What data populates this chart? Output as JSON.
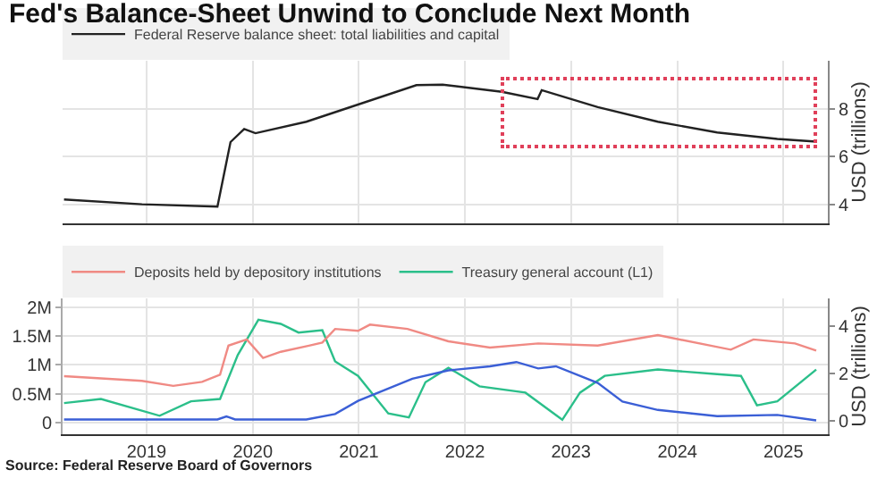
{
  "chart_data": [
    {
      "type": "line",
      "title": "Fed's Balance-Sheet Unwind to Conclude Next Month",
      "y2label": "USD (trillions)",
      "xlim": [
        "2018-09-15",
        "2025-12-01"
      ],
      "xticks": [
        {
          "value": "2019-07-01",
          "label": null
        },
        {
          "value": "2020-07-01",
          "label": null
        },
        {
          "value": "2021-07-01",
          "label": null
        },
        {
          "value": "2022-07-01",
          "label": null
        },
        {
          "value": "2023-07-01",
          "label": null
        },
        {
          "value": "2024-07-01",
          "label": null
        },
        {
          "value": "2025-07-01",
          "label": null
        }
      ],
      "y2lim": [
        3.2,
        10
      ],
      "y2ticks": [
        4,
        6,
        8
      ],
      "tick_labels": "y",
      "grid": true,
      "legend": "top left",
      "marker": "none",
      "line_style": "solid",
      "series": [
        {
          "name": "Federal Reserve balance sheet: total liabilities and capital",
          "color": "#222222",
          "axis": "y2",
          "x": [
            "2018-09-20",
            "2019-06-15",
            "2020-03-01",
            "2020-04-15",
            "2020-06-01",
            "2020-07-10",
            "2021-01-01",
            "2022-01-15",
            "2022-04-15",
            "2022-11-05",
            "2023-03-08",
            "2023-03-22",
            "2023-10-01",
            "2024-04-25",
            "2024-11-15",
            "2025-06-10",
            "2025-10-22"
          ],
          "values": [
            4.2,
            4.0,
            3.9,
            6.6,
            7.15,
            6.97,
            7.45,
            8.98,
            9.0,
            8.7,
            8.4,
            8.77,
            8.06,
            7.45,
            7.0,
            6.73,
            6.62
          ]
        }
      ]
    },
    {
      "type": "line",
      "xlim": [
        "2018-09-15",
        "2025-12-01"
      ],
      "xticks": [
        {
          "value": "2019-07-01",
          "label": "2019"
        },
        {
          "value": "2020-07-01",
          "label": "2020"
        },
        {
          "value": "2021-07-01",
          "label": "2021"
        },
        {
          "value": "2022-07-01",
          "label": "2022"
        },
        {
          "value": "2023-07-01",
          "label": "2023"
        },
        {
          "value": "2024-07-01",
          "label": "2024"
        },
        {
          "value": "2025-07-01",
          "label": "2025"
        }
      ],
      "ylim": [
        -0.2,
        2.15
      ],
      "yticks": [
        {
          "value": 0,
          "label": "0"
        },
        {
          "value": 0.5,
          "label": "0.5M"
        },
        {
          "value": 1,
          "label": "1M"
        },
        {
          "value": 1.5,
          "label": "1.5M"
        },
        {
          "value": 2,
          "label": "2M"
        }
      ],
      "y2lim": [
        -0.55,
        5.15
      ],
      "y2ticks": [
        0,
        2,
        4
      ],
      "y2label": "USD (trillions)",
      "grid": true,
      "legend": "top left",
      "marker": "none",
      "line_style": "solid",
      "annotations": [
        "Source: Federal Reserve Board of Governors"
      ],
      "series": [
        {
          "name": "Deposits held by depository institutions",
          "color": "#f08a84",
          "axis": "y2",
          "x": [
            "2018-09-20",
            "2019-06-15",
            "2019-10-01",
            "2020-01-08",
            "2020-03-10",
            "2020-04-08",
            "2020-06-10",
            "2020-08-05",
            "2020-10-05",
            "2021-01-10",
            "2021-02-25",
            "2021-04-10",
            "2021-06-28",
            "2021-08-08",
            "2021-12-15",
            "2022-05-05",
            "2022-09-25",
            "2023-03-10",
            "2023-10-01",
            "2024-04-25",
            "2025-01-01",
            "2025-03-20",
            "2025-08-10",
            "2025-10-22"
          ],
          "values": [
            1.89,
            1.69,
            1.48,
            1.65,
            1.95,
            3.17,
            3.43,
            2.65,
            2.91,
            3.17,
            3.3,
            3.87,
            3.79,
            4.05,
            3.87,
            3.35,
            3.09,
            3.26,
            3.17,
            3.61,
            3.0,
            3.43,
            3.26,
            2.96
          ]
        },
        {
          "color": "#3b5fd6",
          "axis": "y2",
          "x": [
            "2018-09-20",
            "2020-03-01",
            "2020-04-01",
            "2020-05-01",
            "2021-01-01",
            "2021-04-10",
            "2021-06-28",
            "2022-01-01",
            "2022-05-05",
            "2022-09-25",
            "2022-12-25",
            "2023-03-10",
            "2023-05-10",
            "2023-10-01",
            "2023-12-25",
            "2024-04-25",
            "2024-11-15",
            "2025-06-10",
            "2025-10-22"
          ],
          "values": [
            0.07,
            0.07,
            0.2,
            0.07,
            0.07,
            0.3,
            0.85,
            1.78,
            2.13,
            2.3,
            2.48,
            2.21,
            2.3,
            1.6,
            0.82,
            0.47,
            0.21,
            0.26,
            0.03
          ]
        },
        {
          "name": "Treasury general account (L1)",
          "color": "#2bbf8a",
          "x": [
            "2018-09-20",
            "2019-01-25",
            "2019-08-15",
            "2019-12-01",
            "2020-03-10",
            "2020-05-10",
            "2020-07-20",
            "2020-10-05",
            "2020-12-05",
            "2021-02-25",
            "2021-04-10",
            "2021-06-28",
            "2021-10-10",
            "2021-12-20",
            "2022-02-15",
            "2022-05-05",
            "2022-08-20",
            "2023-01-25",
            "2023-06-01",
            "2023-08-01",
            "2023-10-25",
            "2024-04-25",
            "2024-11-15",
            "2025-02-05",
            "2025-04-01",
            "2025-06-10",
            "2025-10-22"
          ],
          "values": [
            0.34,
            0.41,
            0.12,
            0.37,
            0.41,
            1.17,
            1.78,
            1.71,
            1.56,
            1.6,
            1.06,
            0.81,
            0.16,
            0.09,
            0.7,
            0.95,
            0.63,
            0.52,
            0.05,
            0.52,
            0.81,
            0.92,
            0.84,
            0.81,
            0.3,
            0.37,
            0.92
          ]
        }
      ]
    }
  ]
}
